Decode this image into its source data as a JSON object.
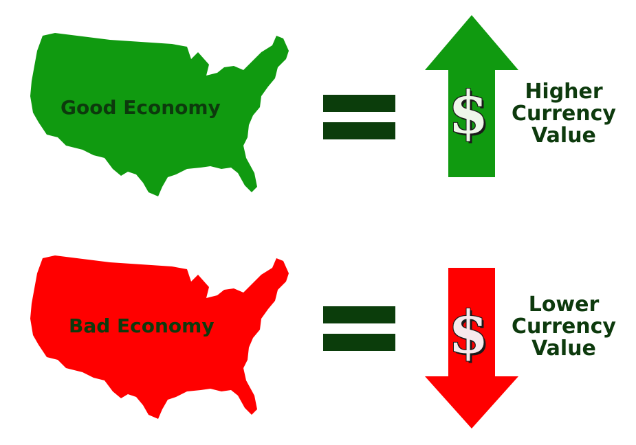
{
  "colors": {
    "good": "#109a10",
    "bad": "#ff0000",
    "text_dark": "#0d3a0d",
    "equals": "#0b3d0b"
  },
  "rows": [
    {
      "map_label": "Good Economy",
      "map_color": "#109a10",
      "arrow_direction": "up",
      "arrow_icon": "arrow-up-icon",
      "dollar": "$",
      "result_line1": "Higher",
      "result_line2": "Currency",
      "result_line3": "Value"
    },
    {
      "map_label": "Bad Economy",
      "map_color": "#ff0000",
      "arrow_direction": "down",
      "arrow_icon": "arrow-down-icon",
      "dollar": "$",
      "result_line1": "Lower",
      "result_line2": "Currency",
      "result_line3": "Value"
    }
  ]
}
